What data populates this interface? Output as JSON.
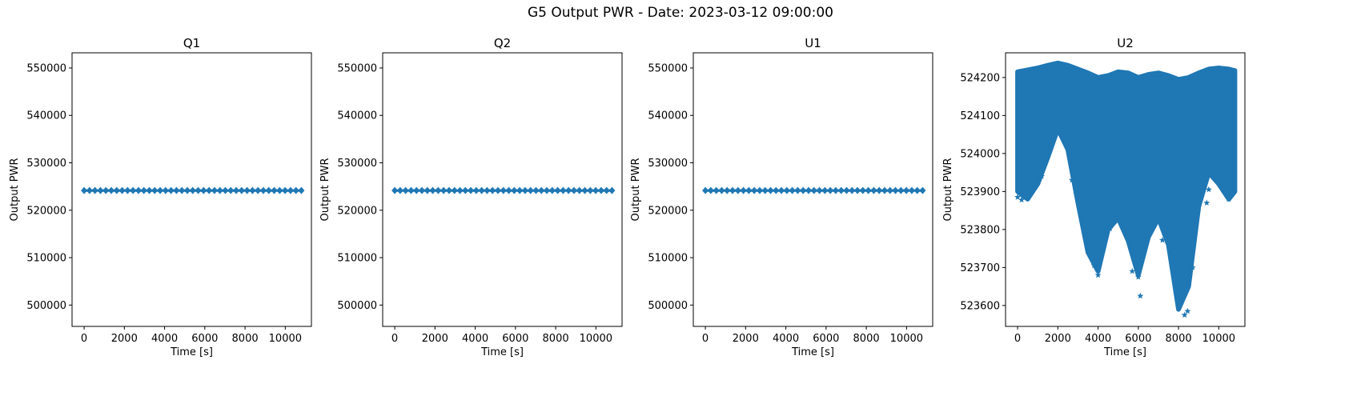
{
  "suptitle": "G5 Output PWR - Date: 2023-03-12 09:00:00",
  "colors": {
    "series": "#1f77b4"
  },
  "chart_data": [
    {
      "type": "scatter",
      "marker": "star",
      "title": "Q1",
      "xlabel": "Time [s]",
      "ylabel": "Output PWR",
      "xlim": [
        -600,
        11300
      ],
      "ylim": [
        495500,
        553200
      ],
      "xticks": [
        0,
        2000,
        4000,
        6000,
        8000,
        10000
      ],
      "yticks": [
        500000,
        510000,
        520000,
        530000,
        540000,
        550000
      ],
      "band": {
        "x": [
          0,
          10800
        ],
        "y_low": 524050,
        "y_high": 524250
      }
    },
    {
      "type": "scatter",
      "marker": "star",
      "title": "Q2",
      "xlabel": "Time [s]",
      "ylabel": "Output PWR",
      "xlim": [
        -600,
        11300
      ],
      "ylim": [
        495500,
        553200
      ],
      "xticks": [
        0,
        2000,
        4000,
        6000,
        8000,
        10000
      ],
      "yticks": [
        500000,
        510000,
        520000,
        530000,
        540000,
        550000
      ],
      "band": {
        "x": [
          0,
          10800
        ],
        "y_low": 524050,
        "y_high": 524250
      }
    },
    {
      "type": "scatter",
      "marker": "star",
      "title": "U1",
      "xlabel": "Time [s]",
      "ylabel": "Output PWR",
      "xlim": [
        -600,
        11300
      ],
      "ylim": [
        495500,
        553200
      ],
      "xticks": [
        0,
        2000,
        4000,
        6000,
        8000,
        10000
      ],
      "yticks": [
        500000,
        510000,
        520000,
        530000,
        540000,
        550000
      ],
      "band": {
        "x": [
          0,
          10800
        ],
        "y_low": 524050,
        "y_high": 524250
      }
    },
    {
      "type": "scatter",
      "marker": "star",
      "title": "U2",
      "xlabel": "Time [s]",
      "ylabel": "Output PWR",
      "xlim": [
        -600,
        11300
      ],
      "ylim": [
        523545,
        524265
      ],
      "xticks": [
        0,
        2000,
        4000,
        6000,
        8000,
        10000
      ],
      "yticks": [
        523600,
        523700,
        523800,
        523900,
        524000,
        524100,
        524200
      ],
      "envelope": {
        "x": [
          0,
          500,
          1000,
          1500,
          2000,
          2500,
          3000,
          3500,
          4000,
          4500,
          5000,
          5500,
          6000,
          6500,
          7000,
          7500,
          8000,
          8500,
          9000,
          9500,
          10000,
          10500,
          10800
        ],
        "upper": [
          524215,
          524220,
          524225,
          524232,
          524238,
          524232,
          524222,
          524212,
          524200,
          524205,
          524215,
          524212,
          524200,
          524208,
          524212,
          524205,
          524195,
          524200,
          524212,
          524222,
          524225,
          524222,
          524218
        ],
        "lower": [
          523900,
          523880,
          523920,
          523990,
          524065,
          524010,
          523870,
          523740,
          523690,
          523800,
          523830,
          523770,
          523680,
          523780,
          523830,
          523760,
          523590,
          523650,
          523860,
          523950,
          523920,
          523880,
          523900
        ]
      },
      "outliers": [
        [
          0,
          523885
        ],
        [
          200,
          523878
        ],
        [
          600,
          523905
        ],
        [
          1200,
          523940
        ],
        [
          2700,
          523930
        ],
        [
          3600,
          523735
        ],
        [
          3800,
          523705
        ],
        [
          4000,
          523680
        ],
        [
          4600,
          523802
        ],
        [
          4900,
          523840
        ],
        [
          5700,
          523690
        ],
        [
          6000,
          523675
        ],
        [
          6100,
          523625
        ],
        [
          7200,
          523772
        ],
        [
          7900,
          523700
        ],
        [
          8150,
          523610
        ],
        [
          8300,
          523575
        ],
        [
          8450,
          523585
        ],
        [
          8700,
          523700
        ],
        [
          9400,
          523870
        ],
        [
          9500,
          523905
        ],
        [
          10200,
          523905
        ],
        [
          10500,
          523880
        ]
      ]
    }
  ]
}
